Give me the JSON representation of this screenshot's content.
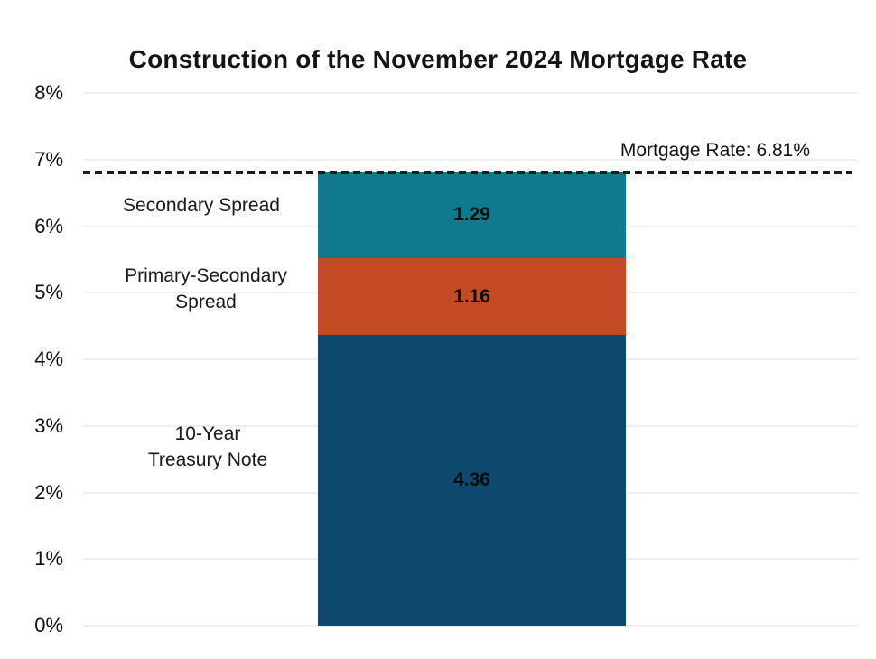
{
  "title": "Construction of the November 2024 Mortgage Rate",
  "annotation": {
    "label": "Mortgage Rate: 6.81%"
  },
  "chart_data": {
    "type": "bar",
    "subtype": "single-stacked-bar",
    "title": "Construction of the November 2024 Mortgage Rate",
    "xlabel": "",
    "ylabel": "",
    "ylim": [
      0,
      8
    ],
    "ytick_labels": [
      "0%",
      "1%",
      "2%",
      "3%",
      "4%",
      "5%",
      "6%",
      "7%",
      "8%"
    ],
    "grid": true,
    "total": {
      "label": "Mortgage Rate: 6.81%",
      "value": 6.81
    },
    "segments": [
      {
        "label": "10-Year Treasury Note",
        "label_display": "10-Year\nTreasury Note",
        "value": 4.36,
        "value_label": "4.36",
        "color": "#0d4a6e"
      },
      {
        "label": "Primary-Secondary Spread",
        "label_display": "Primary-Secondary\nSpread",
        "value": 1.16,
        "value_label": "1.16",
        "color": "#c34a24"
      },
      {
        "label": "Secondary Spread",
        "label_display": "Secondary Spread",
        "value": 1.29,
        "value_label": "1.29",
        "color": "#0e7a8b"
      }
    ]
  }
}
